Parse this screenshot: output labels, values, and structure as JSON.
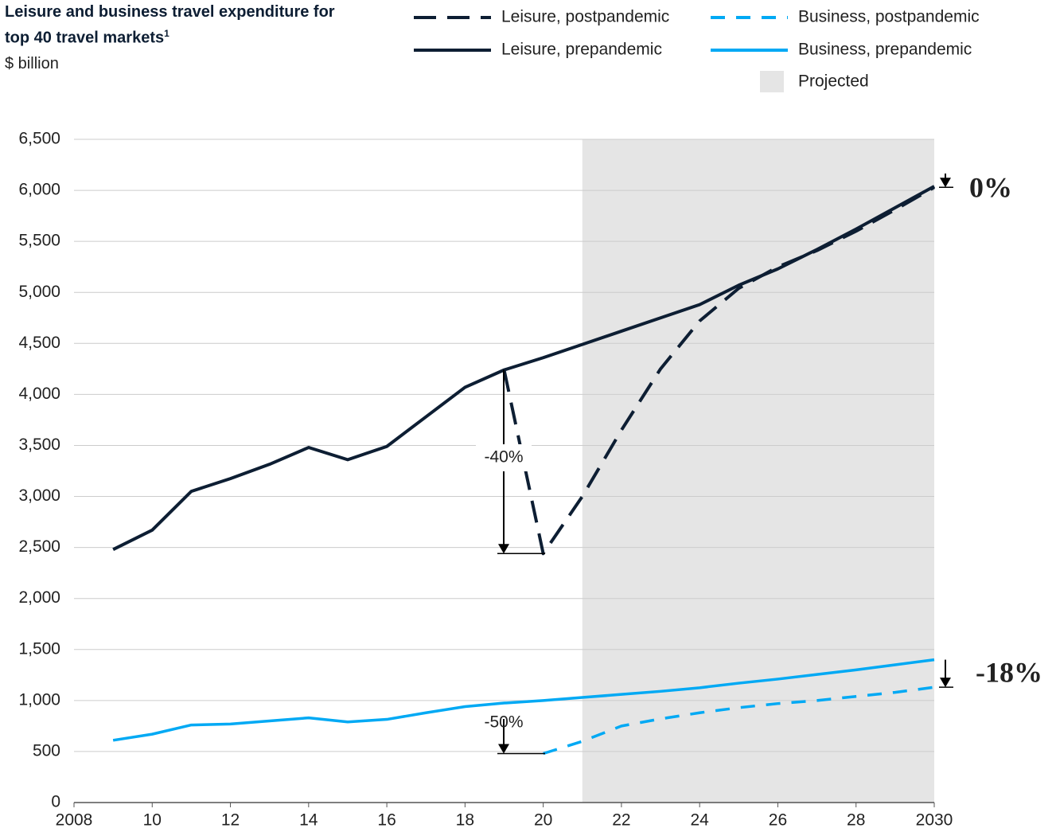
{
  "chart_data": {
    "type": "line",
    "title": "Leisure and business travel expenditure for top 40 travel markets",
    "title_footnote": "1",
    "subtitle": "$ billion",
    "x": [
      2009,
      2010,
      2011,
      2012,
      2013,
      2014,
      2015,
      2016,
      2017,
      2018,
      2019,
      2020,
      2021,
      2022,
      2023,
      2024,
      2025,
      2026,
      2027,
      2028,
      2029,
      2030
    ],
    "series": [
      {
        "name": "Leisure, postpandemic",
        "color": "#0d1e33",
        "dashed": true,
        "values": [
          null,
          null,
          null,
          null,
          null,
          null,
          null,
          null,
          null,
          null,
          4240,
          2440,
          3000,
          3650,
          4250,
          4720,
          5040,
          5250,
          5410,
          5600,
          5810,
          6030
        ]
      },
      {
        "name": "Business, postpandemic",
        "color": "#00a9f4",
        "dashed": true,
        "values": [
          null,
          null,
          null,
          null,
          null,
          null,
          null,
          null,
          null,
          null,
          null,
          480,
          600,
          750,
          820,
          880,
          930,
          970,
          1000,
          1040,
          1080,
          1130
        ]
      },
      {
        "name": "Leisure, prepandemic",
        "color": "#0d1e33",
        "dashed": false,
        "values": [
          2480,
          2670,
          3050,
          3175,
          3315,
          3480,
          3360,
          3490,
          3780,
          4070,
          4240,
          4360,
          4490,
          4620,
          4750,
          4880,
          5070,
          5230,
          5420,
          5620,
          5830,
          6040
        ]
      },
      {
        "name": "Business, prepandemic",
        "color": "#00a9f4",
        "dashed": false,
        "values": [
          610,
          670,
          760,
          770,
          800,
          830,
          790,
          815,
          880,
          940,
          975,
          1000,
          1030,
          1060,
          1090,
          1125,
          1170,
          1210,
          1255,
          1300,
          1350,
          1400
        ]
      }
    ],
    "projected_label": "Projected",
    "projected_range": [
      2021,
      2030
    ],
    "projected_color": "#e5e5e5",
    "xlim": [
      2008,
      2030
    ],
    "xticks": [
      2008,
      {
        "value": 2010,
        "label": "10"
      },
      {
        "value": 2012,
        "label": "12"
      },
      {
        "value": 2014,
        "label": "14"
      },
      {
        "value": 2016,
        "label": "16"
      },
      {
        "value": 2018,
        "label": "18"
      },
      {
        "value": 2020,
        "label": "20"
      },
      {
        "value": 2022,
        "label": "22"
      },
      {
        "value": 2024,
        "label": "24"
      },
      {
        "value": 2026,
        "label": "26"
      },
      {
        "value": 2028,
        "label": "28"
      },
      2030
    ],
    "ylim": [
      0,
      6500
    ],
    "yticks": [
      0,
      500,
      {
        "value": 1000,
        "label": "1,000"
      },
      {
        "value": 1500,
        "label": "1,500"
      },
      {
        "value": 2000,
        "label": "2,000"
      },
      {
        "value": 2500,
        "label": "2,500"
      },
      {
        "value": 3000,
        "label": "3,000"
      },
      {
        "value": 3500,
        "label": "3,500"
      },
      {
        "value": 4000,
        "label": "4,000"
      },
      {
        "value": 4500,
        "label": "4,500"
      },
      {
        "value": 5000,
        "label": "5,000"
      },
      {
        "value": 5500,
        "label": "5,500"
      },
      {
        "value": 6000,
        "label": "6,000"
      },
      {
        "value": 6500,
        "label": "6,500"
      }
    ],
    "grid": true,
    "annotations": [
      "-40%",
      "-50%",
      "0%",
      "-18%"
    ]
  }
}
